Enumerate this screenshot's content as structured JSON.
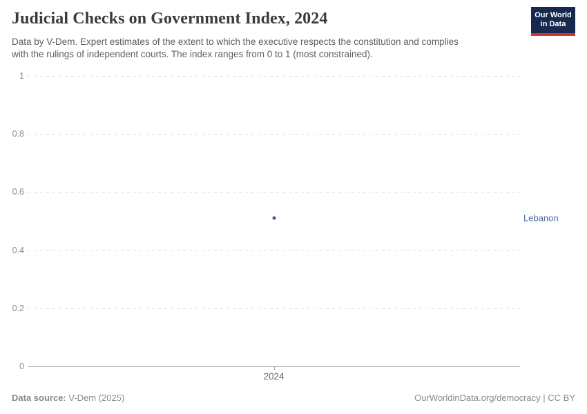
{
  "header": {
    "title": "Judicial Checks on Government Index, 2024",
    "subtitle_line1": "Data by V-Dem. Expert estimates of the extent to which the executive respects the constitution and complies",
    "subtitle_line2": "with the rulings of independent courts. The index ranges from 0 to 1 (most constrained).",
    "logo": {
      "line1": "Our World",
      "line2": "in Data",
      "background_color": "#17294d",
      "accent_color": "#ce3531"
    }
  },
  "chart_data": {
    "type": "scatter",
    "title": "Judicial Checks on Government Index, 2024",
    "series": [
      {
        "name": "Lebanon",
        "x": 2024,
        "y": 0.51
      }
    ],
    "xlabel": "",
    "ylabel": "",
    "x_ticks": [
      "2024"
    ],
    "x_domain": [
      2023.5,
      2024.5
    ],
    "y_ticks": [
      0,
      0.2,
      0.4,
      0.6,
      0.8,
      1
    ],
    "ylim": [
      0,
      1
    ],
    "grid": "horizontal-dashed",
    "legend_position": "entity-label-right",
    "colors": {
      "point": "#3d5c8f",
      "entity_label": "#4c6a9c",
      "gridline": "#dcdcdc",
      "axis_line": "#a6a6a6",
      "tick_label": "#8c8c8c"
    }
  },
  "footer": {
    "data_source_label": "Data source:",
    "data_source_value": " V-Dem (2025)",
    "attribution": "OurWorldinData.org/democracy | CC BY"
  }
}
